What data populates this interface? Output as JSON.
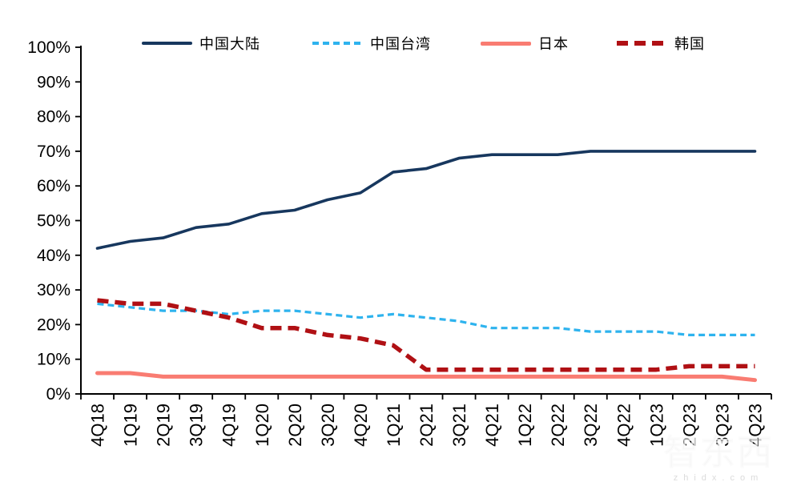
{
  "watermark": {
    "brand_cn": "智东西",
    "brand_en": "zhidx.com"
  },
  "chart_data": {
    "type": "line",
    "title": "",
    "xlabel": "",
    "ylabel": "",
    "categories": [
      "4Q18",
      "1Q19",
      "2Q19",
      "3Q19",
      "4Q19",
      "1Q20",
      "2Q20",
      "3Q20",
      "4Q20",
      "1Q21",
      "2Q21",
      "3Q21",
      "4Q21",
      "1Q22",
      "2Q22",
      "3Q22",
      "4Q22",
      "1Q23",
      "2Q23",
      "3Q23",
      "4Q23"
    ],
    "series": [
      {
        "name": "中国大陆",
        "color": "#17375e",
        "line_style": "solid",
        "width": 3.6,
        "dash": null,
        "values": [
          42,
          44,
          45,
          48,
          49,
          52,
          53,
          56,
          58,
          64,
          65,
          68,
          69,
          69,
          69,
          70,
          70,
          70,
          70,
          70,
          70
        ]
      },
      {
        "name": "中国台湾",
        "color": "#2eb3ee",
        "line_style": "dashed",
        "width": 3.2,
        "dash": "8 5",
        "values": [
          26,
          25,
          24,
          24,
          23,
          24,
          24,
          23,
          22,
          23,
          22,
          21,
          19,
          19,
          19,
          18,
          18,
          18,
          17,
          17,
          17
        ]
      },
      {
        "name": "日本",
        "color": "#f97c72",
        "line_style": "solid",
        "width": 5,
        "dash": null,
        "values": [
          6,
          6,
          5,
          5,
          5,
          5,
          5,
          5,
          5,
          5,
          5,
          5,
          5,
          5,
          5,
          5,
          5,
          5,
          5,
          5,
          4
        ]
      },
      {
        "name": "韩国",
        "color": "#b01014",
        "line_style": "dashed",
        "width": 5.5,
        "dash": "14 8",
        "values": [
          27,
          26,
          26,
          24,
          22,
          19,
          19,
          17,
          16,
          14,
          7,
          7,
          7,
          7,
          7,
          7,
          7,
          7,
          8,
          8,
          8
        ]
      }
    ],
    "ylim": [
      0,
      100
    ],
    "ytick_step": 10,
    "ytick_labels": [
      "0%",
      "10%",
      "20%",
      "30%",
      "40%",
      "50%",
      "60%",
      "70%",
      "80%",
      "90%",
      "100%"
    ],
    "grid": false,
    "legend_position": "top",
    "axis_color": "#000000",
    "label_color": "#000000"
  }
}
